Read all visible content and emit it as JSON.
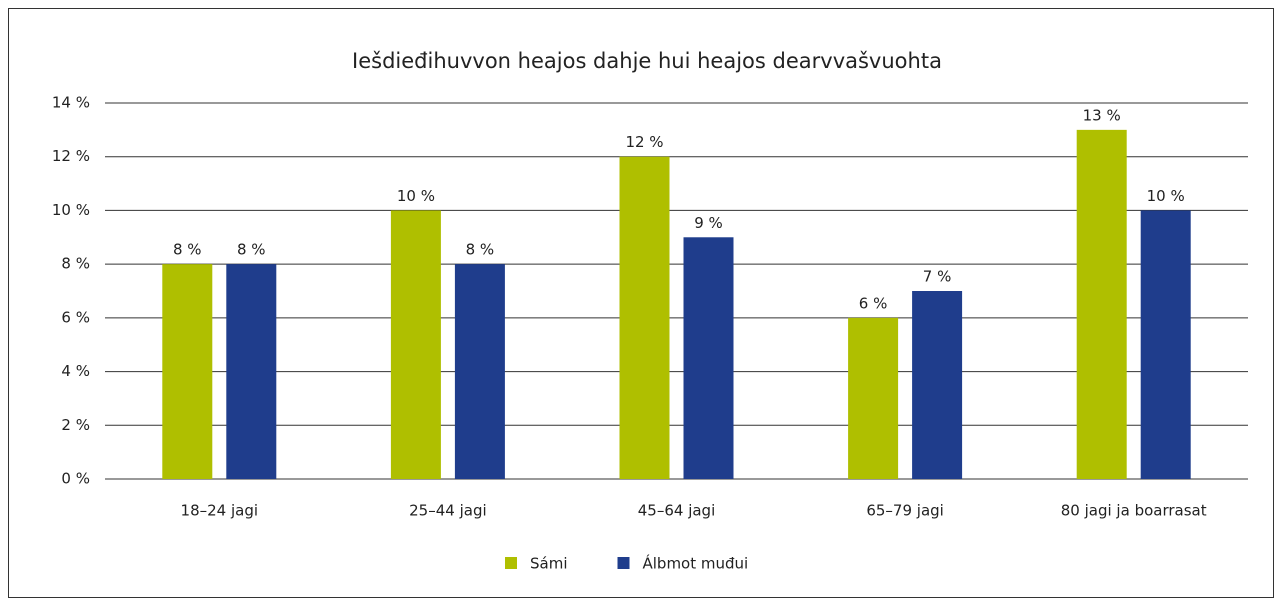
{
  "chart_data": {
    "type": "bar",
    "title": "Iešdieđihuvvon heajos dahje hui heajos dearvvašvuohta",
    "categories": [
      "18–24 jagi",
      "25–44 jagi",
      "45–64 jagi",
      "65–79 jagi",
      "80 jagi ja boarrasat"
    ],
    "series": [
      {
        "name": "Sámi",
        "color": "#afbf00",
        "values": [
          8,
          10,
          12,
          6,
          13
        ],
        "value_labels": [
          "8 %",
          "10 %",
          "12 %",
          "6 %",
          "13 %"
        ]
      },
      {
        "name": "Álbmot muđui",
        "color": "#1f3d8c",
        "values": [
          8,
          8,
          9,
          7,
          10
        ],
        "value_labels": [
          "8 %",
          "8 %",
          "9 %",
          "7 %",
          "10 %"
        ]
      }
    ],
    "ylim": [
      0,
      14
    ],
    "yticks": [
      {
        "value": 0,
        "label": "0 %"
      },
      {
        "value": 2,
        "label": "2 %"
      },
      {
        "value": 4,
        "label": "4 %"
      },
      {
        "value": 6,
        "label": "6 %"
      },
      {
        "value": 8,
        "label": "8 %"
      },
      {
        "value": 10,
        "label": "10 %"
      },
      {
        "value": 12,
        "label": "12 %"
      },
      {
        "value": 14,
        "label": "14 %"
      }
    ],
    "grid": true,
    "legend": "bottom"
  }
}
